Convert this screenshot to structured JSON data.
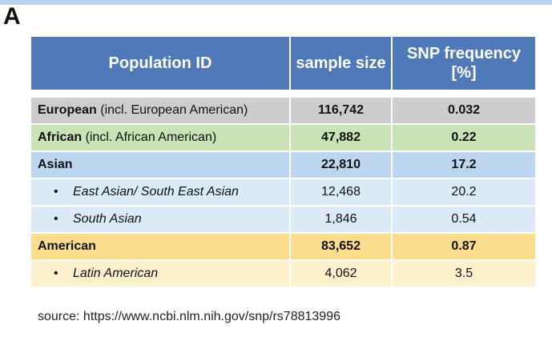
{
  "panel_label": "A",
  "table": {
    "headers": [
      "Population ID",
      "sample size",
      "SNP frequency [%]"
    ],
    "rows": [
      {
        "name_bold": "European",
        "name_rest": " (incl. European American)",
        "sample_size": "116,742",
        "snp_frequency": "0.032"
      },
      {
        "name_bold": "African",
        "name_rest": " (incl. African American)",
        "sample_size": "47,882",
        "snp_frequency": "0.22"
      },
      {
        "name_bold": "Asian",
        "name_rest": "",
        "sample_size": "22,810",
        "snp_frequency": "17.2"
      },
      {
        "bullet": "•",
        "name_italic": "East Asian/ South East Asian",
        "sample_size": "12,468",
        "snp_frequency": "20.2"
      },
      {
        "bullet": "•",
        "name_italic": "South Asian",
        "sample_size": "1,846",
        "snp_frequency": "0.54"
      },
      {
        "name_bold": "American",
        "name_rest": "",
        "sample_size": "83,652",
        "snp_frequency": "0.87"
      },
      {
        "bullet": "•",
        "name_italic": "Latin American",
        "sample_size": "4,062",
        "snp_frequency": "3.5"
      }
    ]
  },
  "source_text": "source: https://www.ncbi.nlm.nih.gov/snp/rs78813996",
  "colors": {
    "header": "#4f79b8",
    "european": "#cdcdcd",
    "african": "#c9e3b6",
    "asian": "#bcd6f0",
    "asian_sub": "#dce9f7",
    "american": "#fbdc8c",
    "american_sub": "#fdf0cc"
  }
}
